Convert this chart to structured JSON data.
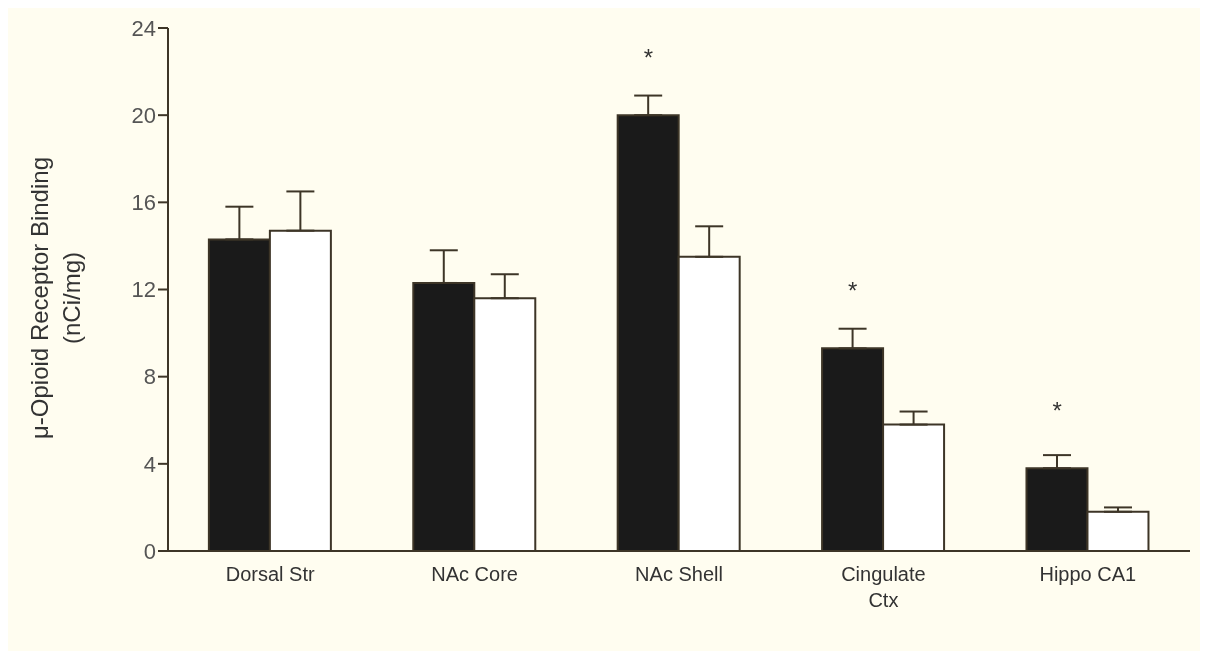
{
  "chart_data": {
    "type": "bar",
    "ylabel": "μ-Opioid Receptor Binding (nCi/mg)",
    "categories": [
      "Dorsal Str",
      "NAc Core",
      "NAc Shell",
      "Cingulate Ctx",
      "Hippo CA1"
    ],
    "series": [
      {
        "color": "#1a1a1a",
        "values": [
          14.3,
          12.3,
          20.0,
          9.3,
          3.8
        ],
        "errors": [
          [
            14.3,
            15.8
          ],
          [
            12.3,
            13.8
          ],
          [
            20.0,
            20.9
          ],
          [
            9.3,
            10.2
          ],
          [
            3.8,
            4.4
          ]
        ]
      },
      {
        "color": "#ffffff",
        "values": [
          14.7,
          11.6,
          13.5,
          5.8,
          1.8
        ],
        "errors": [
          [
            14.7,
            16.5
          ],
          [
            11.6,
            12.7
          ],
          [
            13.5,
            14.9
          ],
          [
            5.8,
            6.4
          ],
          [
            1.8,
            2.0
          ]
        ]
      }
    ],
    "ylim": [
      0,
      24
    ],
    "yticks": [
      0,
      4,
      8,
      12,
      16,
      20,
      24
    ],
    "grid": false,
    "legend": false,
    "annotations": [
      {
        "text": "*",
        "x": "NAc Shell",
        "y": 20.0
      },
      {
        "text": "*",
        "x": "Cingulate Ctx",
        "y": 9.3
      },
      {
        "text": "*",
        "x": "Hippo CA1",
        "y": 3.8
      }
    ]
  }
}
